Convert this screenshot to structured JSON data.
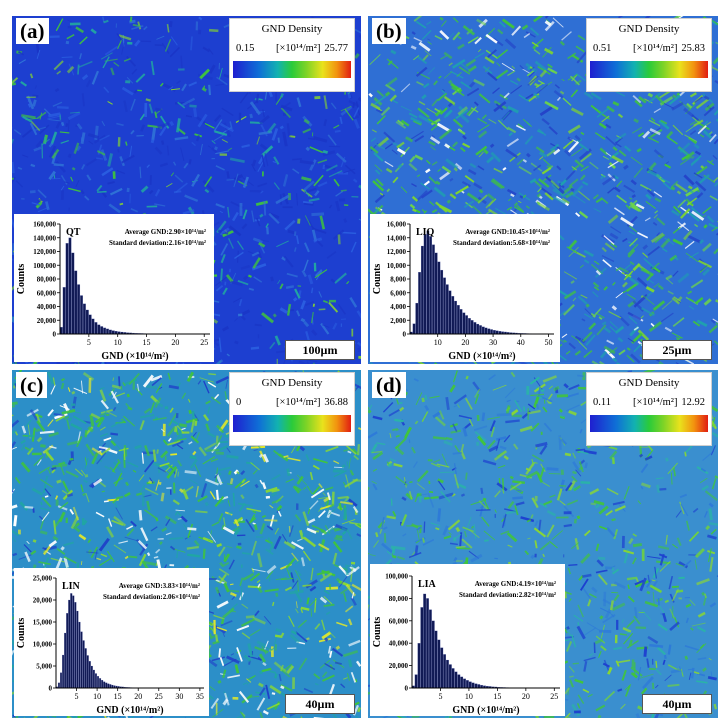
{
  "panels": [
    {
      "label": "(a)",
      "legend_title": "GND Density",
      "unit": "[×10¹⁴/m²]",
      "min": "0.15",
      "max": "25.77",
      "scale_bar": "100µm"
    },
    {
      "label": "(b)",
      "legend_title": "GND Density",
      "unit": "[×10¹⁴/m²]",
      "min": "0.51",
      "max": "25.83",
      "scale_bar": "25µm"
    },
    {
      "label": "(c)",
      "legend_title": "GND Density",
      "unit": "[×10¹⁴/m²]",
      "min": "0",
      "max": "36.88",
      "scale_bar": "40µm"
    },
    {
      "label": "(d)",
      "legend_title": "GND Density",
      "unit": "[×10¹⁴/m²]",
      "min": "0.11",
      "max": "12.92",
      "scale_bar": "40µm"
    }
  ],
  "colors": {
    "low": "#1f1fd0",
    "mid": "#2acb3a",
    "high": "#e11d12",
    "bars": "#111a55"
  },
  "chart_data": [
    {
      "type": "bar",
      "name": "QT",
      "annotation": [
        "Average GND:2.90×10¹⁴/m²",
        "Standard deviation:2.16×10¹⁴/m²"
      ],
      "xlabel": "GND (×10¹⁴/m²)",
      "ylabel": "Counts",
      "xlim": [
        0,
        26
      ],
      "ylim": [
        0,
        160000
      ],
      "x_ticks": [
        5,
        10,
        15,
        20,
        25
      ],
      "y_ticks": [
        "0",
        "20,000",
        "40,000",
        "60,000",
        "80,000",
        "100,000",
        "120,000",
        "140,000",
        "160,000"
      ],
      "bin_width": 0.5,
      "values": [
        10000,
        68000,
        132000,
        140000,
        118000,
        92000,
        72000,
        56000,
        44000,
        35000,
        28000,
        22000,
        17000,
        13500,
        11000,
        9000,
        7500,
        6000,
        5000,
        4200,
        3500,
        2900,
        2400,
        2000,
        1700,
        1400,
        1200,
        1000,
        850,
        700,
        600,
        500,
        420,
        350,
        300,
        250,
        200,
        170,
        140,
        110,
        90,
        70,
        55,
        45,
        35,
        28,
        22,
        18,
        14,
        10
      ]
    },
    {
      "type": "bar",
      "name": "LIQ",
      "annotation": [
        "Average GND:10.45×10¹⁴/m²",
        "Standard deviation:5.68×10¹⁴/m²"
      ],
      "xlabel": "GND (×10¹⁴/m²)",
      "ylabel": "Counts",
      "xlim": [
        0,
        52
      ],
      "ylim": [
        0,
        16000
      ],
      "x_ticks": [
        10,
        20,
        30,
        40,
        50
      ],
      "y_ticks": [
        "0",
        "2,000",
        "4,000",
        "6,000",
        "8,000",
        "10,000",
        "12,000",
        "14,000",
        "16,000"
      ],
      "bin_width": 1,
      "values": [
        300,
        1500,
        4500,
        9000,
        12800,
        14500,
        15000,
        14200,
        13000,
        11800,
        10500,
        9300,
        8200,
        7200,
        6300,
        5500,
        4800,
        4200,
        3600,
        3100,
        2700,
        2300,
        2000,
        1700,
        1450,
        1250,
        1050,
        900,
        780,
        660,
        560,
        480,
        410,
        350,
        300,
        250,
        210,
        180,
        150,
        125,
        105,
        90,
        75,
        62,
        52,
        44,
        36,
        30,
        25,
        20
      ]
    },
    {
      "type": "bar",
      "name": "LIN",
      "annotation": [
        "Average GND:3.83×10¹⁴/m²",
        "Standard deviation:2.06×10¹⁴/m²"
      ],
      "xlabel": "GND (×10¹⁴/m²)",
      "ylabel": "Counts",
      "xlim": [
        0,
        36
      ],
      "ylim": [
        0,
        25000
      ],
      "x_ticks": [
        5,
        10,
        15,
        20,
        25,
        30,
        35
      ],
      "y_ticks": [
        "0",
        "5,000",
        "10,000",
        "15,000",
        "20,000",
        "25,000"
      ],
      "bin_width": 0.5,
      "values": [
        300,
        1200,
        3500,
        7500,
        12500,
        17000,
        20000,
        21500,
        21000,
        19500,
        17500,
        15000,
        12800,
        10800,
        9000,
        7400,
        6100,
        5000,
        4100,
        3300,
        2700,
        2200,
        1800,
        1450,
        1200,
        1000,
        820,
        680,
        560,
        460,
        380,
        310,
        260,
        210,
        170,
        140,
        115,
        95,
        78,
        64,
        52,
        43,
        35,
        29,
        24,
        20,
        16,
        13,
        11,
        9,
        7,
        6,
        5,
        4,
        3,
        3
      ]
    },
    {
      "type": "bar",
      "name": "LIA",
      "annotation": [
        "Average GND:4.19×10¹⁴/m²",
        "Standard deviation:2.82×10¹⁴/m²"
      ],
      "xlabel": "GND (×10¹⁴/m²)",
      "ylabel": "Counts",
      "xlim": [
        0,
        26
      ],
      "ylim": [
        0,
        100000
      ],
      "x_ticks": [
        5,
        10,
        15,
        20,
        25
      ],
      "y_ticks": [
        "0",
        "20,000",
        "40,000",
        "60,000",
        "80,000",
        "100,000"
      ],
      "bin_width": 0.5,
      "values": [
        2000,
        12000,
        40000,
        72000,
        84000,
        80000,
        70000,
        60000,
        51000,
        43000,
        36000,
        30000,
        25000,
        21000,
        17500,
        14500,
        12000,
        10000,
        8300,
        6900,
        5700,
        4700,
        3900,
        3200,
        2600,
        2100,
        1700,
        1400,
        1150,
        950,
        780,
        640,
        520,
        430,
        350,
        290,
        240,
        195,
        160,
        130,
        105,
        85,
        70,
        57,
        46,
        37,
        30,
        24,
        19,
        15
      ]
    }
  ]
}
